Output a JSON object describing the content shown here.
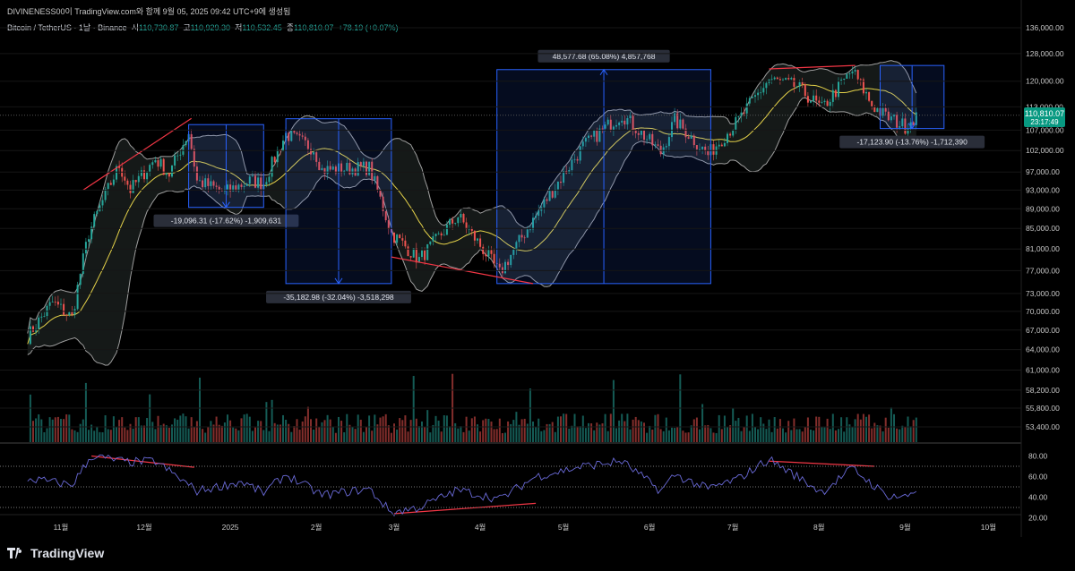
{
  "header": {
    "text": "DIVINENESS00이 TradingView.com와 함께 9월 05, 2025 09:42 UTC+9에 생성됨"
  },
  "legend": {
    "symbol": "Bitcoin / TetherUS · 1날 · Binance",
    "open_label": "시",
    "open": "110,730.87",
    "high_label": "고",
    "high": "110,929.30",
    "low_label": "저",
    "low": "110,532.45",
    "close_label": "종",
    "close": "110,810.07",
    "change": "+78.19 (+0.07%)"
  },
  "price_tag": {
    "price": "110,810.07",
    "timer": "23:17:49"
  },
  "logo": {
    "text": "TradingView"
  },
  "colors": {
    "up": "#26a69a",
    "down": "#ef5350",
    "bb": "#9e9e9e",
    "mid": "#e6d34a",
    "rsi": "#6a6ad8",
    "box": "#2962ff",
    "trend": "#f23645"
  },
  "chart_data": {
    "type": "candlestick",
    "symbol": "Bitcoin / TetherUS",
    "interval": "1날",
    "price_axis_scale": "log",
    "price_ticks": [
      "136,000.00",
      "128,000.00",
      "120,000.00",
      "113,000.00",
      "107,000.00",
      "102,000.00",
      "97,000.00",
      "93,000.00",
      "89,000.00",
      "85,000.00",
      "81,000.00",
      "77,000.00",
      "73,000.00",
      "70,000.00",
      "67,000.00",
      "64,000.00",
      "61,000.00",
      "58,200.00",
      "55,800.00",
      "53,400.00"
    ],
    "price_tick_values": [
      136000,
      128000,
      120000,
      113000,
      107000,
      102000,
      97000,
      93000,
      89000,
      85000,
      81000,
      77000,
      73000,
      70000,
      67000,
      64000,
      61000,
      58200,
      55800,
      53400
    ],
    "time_labels": [
      {
        "t": "2024-11-01",
        "label": "11월"
      },
      {
        "t": "2024-12-01",
        "label": "12월"
      },
      {
        "t": "2025-01-01",
        "label": "2025"
      },
      {
        "t": "2025-02-01",
        "label": "2월"
      },
      {
        "t": "2025-03-01",
        "label": "3월"
      },
      {
        "t": "2025-04-01",
        "label": "4월"
      },
      {
        "t": "2025-05-01",
        "label": "5월"
      },
      {
        "t": "2025-06-01",
        "label": "6월"
      },
      {
        "t": "2025-07-01",
        "label": "7월"
      },
      {
        "t": "2025-08-01",
        "label": "8월"
      },
      {
        "t": "2025-09-01",
        "label": "9월"
      },
      {
        "t": "2025-10-01",
        "label": "10월"
      }
    ],
    "price_path": [
      [
        "2024-10-20",
        66000
      ],
      [
        "2024-10-29",
        71500
      ],
      [
        "2024-11-05",
        69000
      ],
      [
        "2024-11-11",
        84000
      ],
      [
        "2024-11-22",
        98500
      ],
      [
        "2024-11-26",
        93000
      ],
      [
        "2024-12-05",
        100000
      ],
      [
        "2024-12-10",
        96500
      ],
      [
        "2024-12-17",
        106500
      ],
      [
        "2024-12-20",
        95000
      ],
      [
        "2024-12-30",
        92500
      ],
      [
        "2025-01-08",
        95000
      ],
      [
        "2025-01-13",
        94500
      ],
      [
        "2025-01-21",
        106000
      ],
      [
        "2025-01-31",
        102500
      ],
      [
        "2025-02-03",
        97500
      ],
      [
        "2025-02-20",
        98000
      ],
      [
        "2025-02-28",
        84000
      ],
      [
        "2025-03-10",
        79000
      ],
      [
        "2025-03-24",
        87500
      ],
      [
        "2025-04-08",
        76500
      ],
      [
        "2025-04-21",
        87500
      ],
      [
        "2025-05-01",
        96500
      ],
      [
        "2025-05-08",
        103000
      ],
      [
        "2025-05-22",
        111000
      ],
      [
        "2025-06-05",
        101500
      ],
      [
        "2025-06-10",
        109500
      ],
      [
        "2025-06-22",
        101000
      ],
      [
        "2025-07-03",
        109500
      ],
      [
        "2025-07-14",
        120500
      ],
      [
        "2025-07-24",
        118500
      ],
      [
        "2025-08-02",
        112500
      ],
      [
        "2025-08-13",
        123000
      ],
      [
        "2025-08-20",
        113500
      ],
      [
        "2025-08-25",
        110500
      ],
      [
        "2025-09-01",
        108000
      ],
      [
        "2025-09-05",
        110810
      ]
    ],
    "rsi": {
      "levels": [
        "80.00",
        "60.00",
        "40.00",
        "20.00"
      ],
      "level_values": [
        80,
        60,
        40,
        20
      ],
      "overbought": 70,
      "mid": 50,
      "oversold": 30,
      "path": [
        [
          "2024-10-20",
          58
        ],
        [
          "2024-11-05",
          52
        ],
        [
          "2024-11-12",
          80
        ],
        [
          "2024-11-25",
          74
        ],
        [
          "2024-12-05",
          75
        ],
        [
          "2024-12-20",
          46
        ],
        [
          "2025-01-05",
          55
        ],
        [
          "2025-01-13",
          44
        ],
        [
          "2025-01-21",
          62
        ],
        [
          "2025-02-03",
          42
        ],
        [
          "2025-02-20",
          48
        ],
        [
          "2025-02-28",
          25
        ],
        [
          "2025-03-10",
          30
        ],
        [
          "2025-03-24",
          47
        ],
        [
          "2025-04-08",
          38
        ],
        [
          "2025-04-21",
          60
        ],
        [
          "2025-05-08",
          70
        ],
        [
          "2025-05-22",
          75
        ],
        [
          "2025-06-05",
          46
        ],
        [
          "2025-06-10",
          62
        ],
        [
          "2025-06-22",
          48
        ],
        [
          "2025-07-03",
          58
        ],
        [
          "2025-07-14",
          77
        ],
        [
          "2025-08-02",
          45
        ],
        [
          "2025-08-13",
          68
        ],
        [
          "2025-08-25",
          42
        ],
        [
          "2025-09-01",
          40
        ],
        [
          "2025-09-05",
          47
        ]
      ]
    },
    "measurements": [
      {
        "label": "-19,096.31 (-17.62%) -1,909,631",
        "t_start": "2024-12-17",
        "t_end": "2025-01-13",
        "from": 108400,
        "to": 89300
      },
      {
        "label": "-35,182.98 (-32.04%) -3,518,298",
        "t_start": "2025-01-21",
        "t_end": "2025-02-28",
        "from": 109900,
        "to": 74700
      },
      {
        "label": "48,577.68 (65.08%) 4,857,768",
        "t_start": "2025-04-07",
        "t_end": "2025-06-23",
        "from": 74700,
        "to": 123300
      },
      {
        "label": "-17,123.90 (-13.76%) -1,712,390",
        "t_start": "2025-08-23",
        "t_end": "2025-09-15",
        "from": 124500,
        "to": 107400
      }
    ],
    "trendlines": [
      {
        "pane": "price",
        "from": [
          "2024-11-09",
          93000
        ],
        "to": [
          "2024-12-18",
          110000
        ]
      },
      {
        "pane": "price",
        "from": [
          "2025-02-28",
          79500
        ],
        "to": [
          "2025-04-20",
          74700
        ]
      },
      {
        "pane": "price",
        "from": [
          "2025-07-14",
          123500
        ],
        "to": [
          "2025-08-14",
          124500
        ]
      },
      {
        "pane": "rsi",
        "from": [
          "2024-11-12",
          80
        ],
        "to": [
          "2024-12-19",
          69
        ]
      },
      {
        "pane": "rsi",
        "from": [
          "2025-03-01",
          24
        ],
        "to": [
          "2025-04-21",
          34
        ]
      },
      {
        "pane": "rsi",
        "from": [
          "2025-07-14",
          75
        ],
        "to": [
          "2025-08-21",
          70
        ]
      }
    ]
  }
}
